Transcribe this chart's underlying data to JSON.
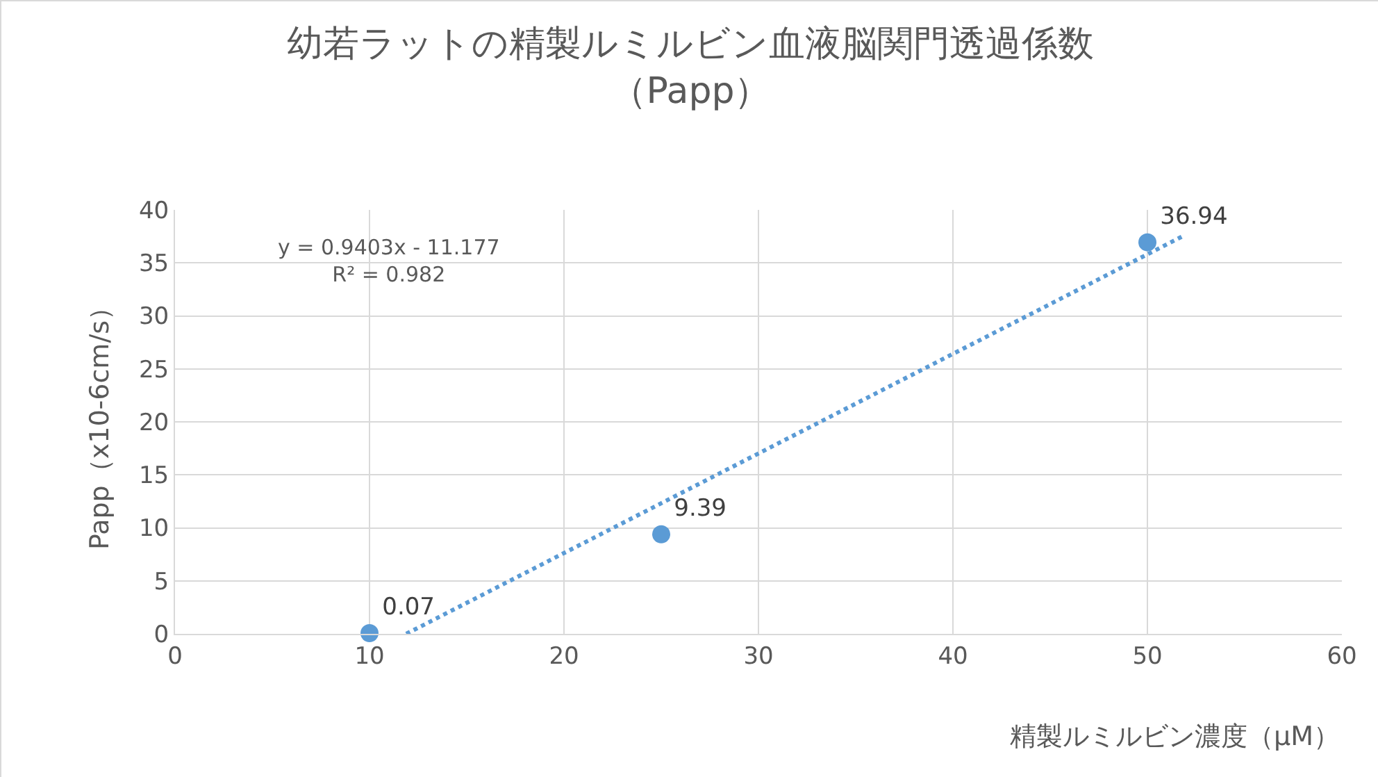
{
  "chart_data": {
    "type": "scatter",
    "title": "幼若ラットの精製ルミルビン血液脳関門透過係数",
    "subtitle": "（Papp）",
    "xlabel": "精製ルミルビン濃度（μM）",
    "ylabel": "Papp（x10-6cm/s）",
    "x": [
      10,
      25,
      50
    ],
    "series": [
      {
        "color": "#5b9bd5",
        "values": [
          0.07,
          9.39,
          36.94
        ],
        "marker": "circle",
        "data_labels": true
      },
      {
        "type": "line",
        "color": "#5b9bd5",
        "x": [
          11.89,
          51.8
        ],
        "values": [
          0,
          37.5
        ],
        "line_style": "dotted",
        "marker": "none"
      }
    ],
    "annotations": [
      "y = 0.9403x - 11.177\nR² = 0.982"
    ],
    "xlim": [
      0,
      60
    ],
    "xticks": [
      0,
      10,
      20,
      30,
      40,
      50,
      60
    ],
    "ylim": [
      0,
      40
    ],
    "yticks": [
      0,
      5,
      10,
      15,
      20,
      25,
      30,
      35,
      40
    ],
    "grid": true
  }
}
